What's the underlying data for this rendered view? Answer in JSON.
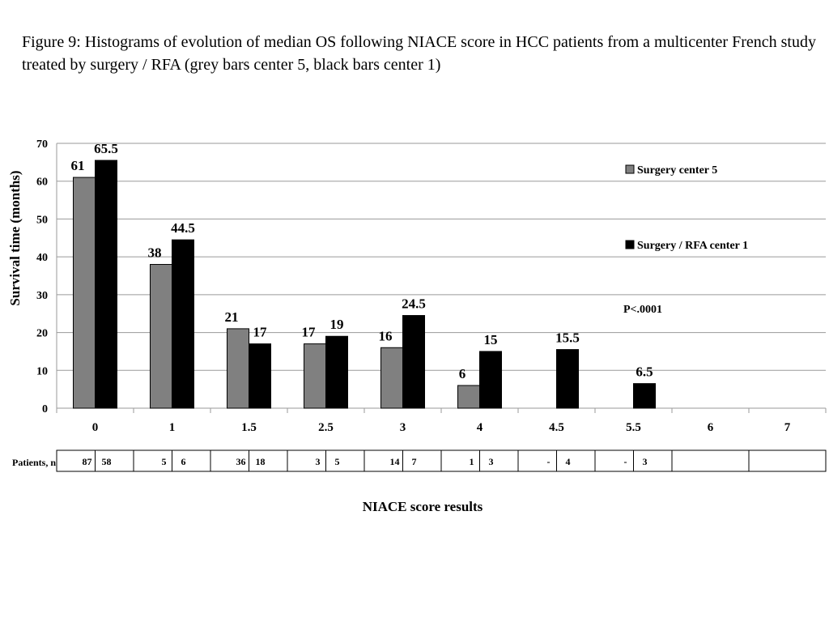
{
  "caption": "Figure 9: Histograms of evolution of median OS following NIACE score in HCC patients from a multicenter French study treated by surgery / RFA  (grey bars center 5, black bars center 1)",
  "chart_data": {
    "type": "bar",
    "title": "",
    "categories": [
      "0",
      "1",
      "1.5",
      "2.5",
      "3",
      "4",
      "4.5",
      "5.5",
      "6",
      "7"
    ],
    "series": [
      {
        "name": "Surgery center 5",
        "color": "#808080",
        "values": [
          61,
          38,
          21,
          17,
          16,
          6,
          null,
          null,
          null,
          null
        ]
      },
      {
        "name": "Surgery / RFA center 1",
        "color": "#000000",
        "values": [
          65.5,
          44.5,
          17,
          19,
          24.5,
          15,
          15.5,
          6.5,
          null,
          null
        ]
      }
    ],
    "data_labels": [
      [
        "61",
        "38",
        "21",
        "17",
        "16",
        "6",
        "",
        "",
        "",
        ""
      ],
      [
        "65.5",
        "44.5",
        "17",
        "19",
        "24.5",
        "15",
        "15.5",
        "6.5",
        "",
        ""
      ]
    ],
    "xlabel": "NIACE score results",
    "ylabel": "Survival time (months)",
    "ylim": [
      0,
      70
    ],
    "yticks": [
      0,
      10,
      20,
      30,
      40,
      50,
      60,
      70
    ],
    "grid": true,
    "legend_position": "right",
    "annotation": "P<.0001",
    "patients_table": {
      "row_label": "Patients, n",
      "cells": [
        [
          "87",
          "58"
        ],
        [
          "5",
          "6"
        ],
        [
          "36",
          "18"
        ],
        [
          "3",
          "5"
        ],
        [
          "14",
          "7"
        ],
        [
          "1",
          "3"
        ],
        [
          "-",
          "4"
        ],
        [
          "-",
          "3"
        ],
        [
          "",
          ""
        ],
        [
          "",
          ""
        ]
      ]
    }
  }
}
